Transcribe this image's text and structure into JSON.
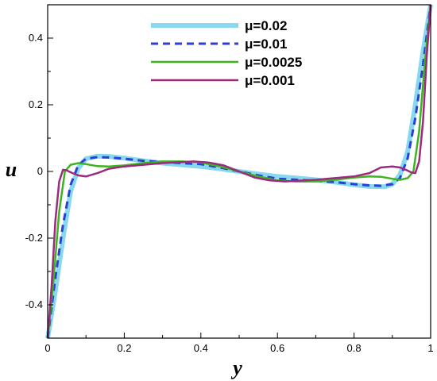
{
  "chart_data": {
    "type": "line",
    "title": "",
    "xlabel": "y",
    "ylabel": "u",
    "xlim": [
      0,
      1
    ],
    "ylim": [
      -0.5,
      0.5
    ],
    "xticks": [
      0,
      0.2,
      0.4,
      0.6,
      0.8,
      1
    ],
    "xtick_labels": [
      "0",
      "0.2",
      "0.4",
      "0.6",
      "0.8",
      "1"
    ],
    "yticks": [
      -0.4,
      -0.2,
      0,
      0.2,
      0.4
    ],
    "ytick_labels": [
      "-0.4",
      "-0.2",
      "0",
      "0.2",
      "0.4"
    ],
    "grid": false,
    "legend_position": "top-center",
    "series": [
      {
        "name": "μ=0.02",
        "color": "#88d8f0",
        "style": "solid-thick",
        "x": [
          0,
          0.02,
          0.04,
          0.06,
          0.08,
          0.1,
          0.13,
          0.16,
          0.2,
          0.25,
          0.3,
          0.35,
          0.4,
          0.45,
          0.5,
          0.55,
          0.6,
          0.65,
          0.7,
          0.75,
          0.8,
          0.84,
          0.88,
          0.9,
          0.92,
          0.94,
          0.96,
          0.98,
          1
        ],
        "y": [
          -0.5,
          -0.36,
          -0.2,
          -0.06,
          0.01,
          0.038,
          0.046,
          0.045,
          0.04,
          0.032,
          0.025,
          0.02,
          0.015,
          0.008,
          0.0,
          -0.008,
          -0.015,
          -0.02,
          -0.025,
          -0.032,
          -0.04,
          -0.045,
          -0.046,
          -0.038,
          -0.01,
          0.06,
          0.2,
          0.36,
          0.5
        ]
      },
      {
        "name": "μ=0.01",
        "color": "#2a3fd6",
        "style": "dashed",
        "x": [
          0,
          0.02,
          0.04,
          0.06,
          0.08,
          0.1,
          0.13,
          0.16,
          0.2,
          0.25,
          0.3,
          0.35,
          0.4,
          0.45,
          0.5,
          0.55,
          0.6,
          0.65,
          0.7,
          0.75,
          0.8,
          0.84,
          0.87,
          0.9,
          0.92,
          0.94,
          0.96,
          0.98,
          1
        ],
        "y": [
          -0.5,
          -0.32,
          -0.16,
          -0.04,
          0.02,
          0.038,
          0.043,
          0.042,
          0.038,
          0.032,
          0.028,
          0.025,
          0.022,
          0.012,
          0.0,
          -0.012,
          -0.022,
          -0.025,
          -0.028,
          -0.032,
          -0.038,
          -0.042,
          -0.043,
          -0.038,
          -0.02,
          0.04,
          0.16,
          0.32,
          0.5
        ]
      },
      {
        "name": "μ=0.0025",
        "color": "#3cb41e",
        "style": "solid",
        "x": [
          0,
          0.015,
          0.03,
          0.045,
          0.06,
          0.08,
          0.1,
          0.13,
          0.16,
          0.2,
          0.25,
          0.3,
          0.35,
          0.4,
          0.45,
          0.5,
          0.55,
          0.6,
          0.65,
          0.7,
          0.75,
          0.8,
          0.84,
          0.87,
          0.9,
          0.92,
          0.94,
          0.955,
          0.97,
          0.985,
          1
        ],
        "y": [
          -0.5,
          -0.33,
          -0.12,
          0.0,
          0.02,
          0.025,
          0.022,
          0.016,
          0.015,
          0.018,
          0.025,
          0.03,
          0.03,
          0.027,
          0.015,
          0.0,
          -0.015,
          -0.027,
          -0.03,
          -0.03,
          -0.025,
          -0.018,
          -0.015,
          -0.016,
          -0.022,
          -0.025,
          -0.02,
          0.0,
          0.12,
          0.33,
          0.5
        ]
      },
      {
        "name": "μ=0.001",
        "color": "#9c2a7e",
        "style": "solid",
        "x": [
          0,
          0.01,
          0.02,
          0.03,
          0.04,
          0.05,
          0.065,
          0.08,
          0.1,
          0.13,
          0.16,
          0.2,
          0.25,
          0.3,
          0.35,
          0.38,
          0.42,
          0.46,
          0.5,
          0.54,
          0.58,
          0.62,
          0.65,
          0.7,
          0.75,
          0.8,
          0.84,
          0.87,
          0.9,
          0.92,
          0.935,
          0.95,
          0.96,
          0.97,
          0.98,
          0.99,
          1
        ],
        "y": [
          -0.5,
          -0.35,
          -0.15,
          -0.03,
          0.005,
          0.003,
          -0.005,
          -0.012,
          -0.015,
          -0.005,
          0.008,
          0.015,
          0.02,
          0.025,
          0.028,
          0.03,
          0.027,
          0.018,
          0.0,
          -0.018,
          -0.027,
          -0.03,
          -0.028,
          -0.025,
          -0.02,
          -0.015,
          -0.005,
          0.012,
          0.015,
          0.012,
          0.005,
          -0.003,
          -0.005,
          0.03,
          0.15,
          0.35,
          0.5
        ]
      }
    ]
  }
}
